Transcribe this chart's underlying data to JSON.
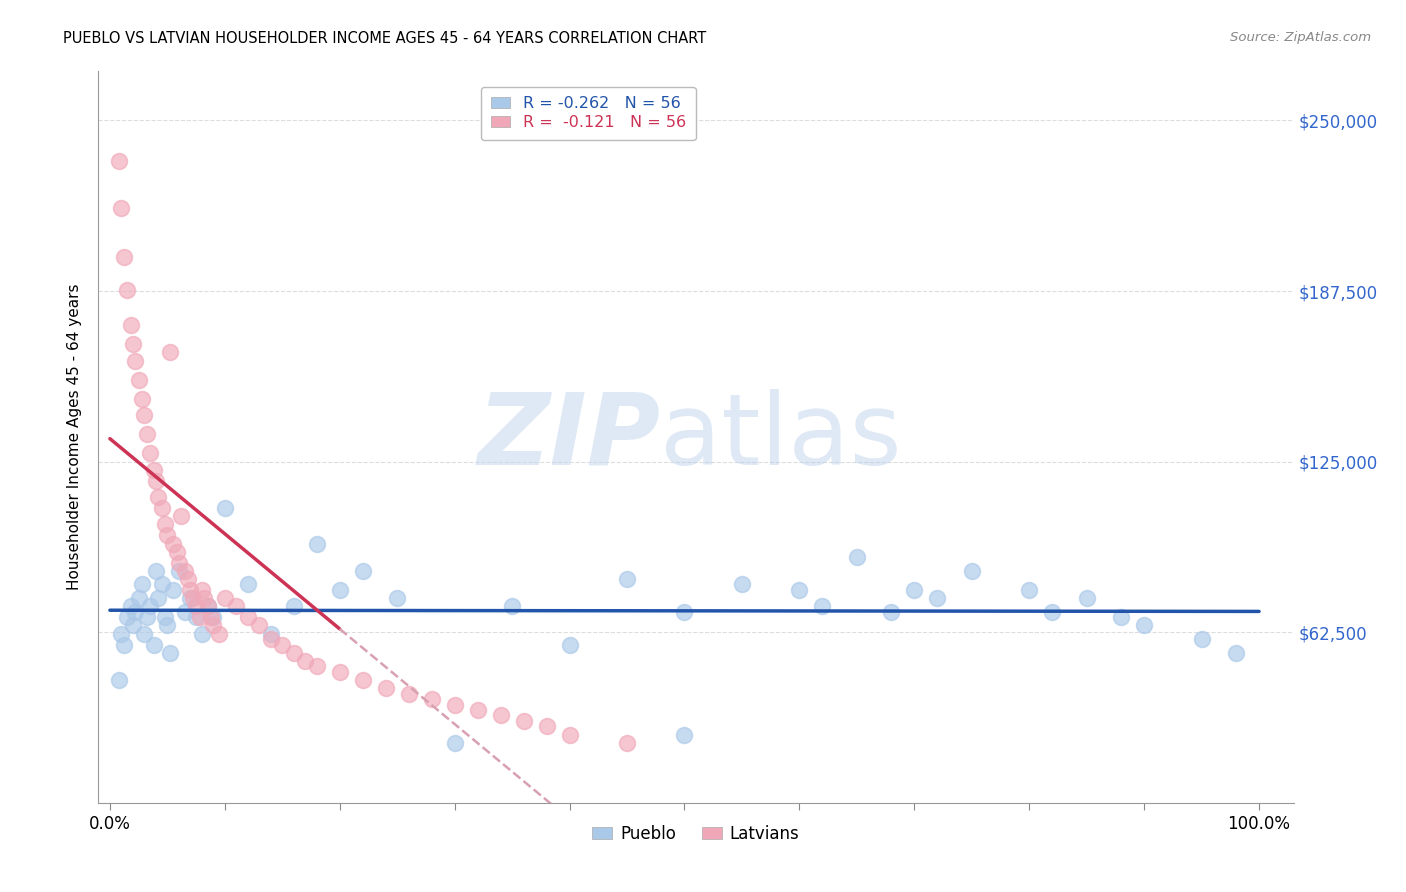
{
  "title": "PUEBLO VS LATVIAN HOUSEHOLDER INCOME AGES 45 - 64 YEARS CORRELATION CHART",
  "source": "Source: ZipAtlas.com",
  "ylabel": "Householder Income Ages 45 - 64 years",
  "ytick_labels": [
    "$62,500",
    "$125,000",
    "$187,500",
    "$250,000"
  ],
  "ytick_values": [
    62500,
    125000,
    187500,
    250000
  ],
  "ymin": 0,
  "ymax": 268000,
  "xmin": -0.01,
  "xmax": 1.03,
  "watermark_zip": "ZIP",
  "watermark_atlas": "atlas",
  "pueblo_color": "#aac8e8",
  "latvian_color": "#f0a8b8",
  "pueblo_line_color": "#2255aa",
  "latvian_line_color": "#cc3355",
  "dashed_line_color": "#d8a0b0",
  "grid_color": "#dddddd",
  "background_color": "#ffffff",
  "pueblo_x": [
    0.008,
    0.01,
    0.012,
    0.015,
    0.018,
    0.02,
    0.022,
    0.025,
    0.028,
    0.03,
    0.032,
    0.035,
    0.038,
    0.04,
    0.042,
    0.045,
    0.048,
    0.05,
    0.052,
    0.055,
    0.06,
    0.065,
    0.07,
    0.075,
    0.08,
    0.085,
    0.09,
    0.1,
    0.12,
    0.14,
    0.16,
    0.18,
    0.2,
    0.22,
    0.25,
    0.3,
    0.35,
    0.4,
    0.45,
    0.5,
    0.5,
    0.55,
    0.6,
    0.62,
    0.65,
    0.68,
    0.7,
    0.72,
    0.75,
    0.8,
    0.82,
    0.85,
    0.88,
    0.9,
    0.95,
    0.98
  ],
  "pueblo_y": [
    45000,
    62000,
    58000,
    68000,
    72000,
    65000,
    70000,
    75000,
    80000,
    62000,
    68000,
    72000,
    58000,
    85000,
    75000,
    80000,
    68000,
    65000,
    55000,
    78000,
    85000,
    70000,
    75000,
    68000,
    62000,
    72000,
    68000,
    108000,
    80000,
    62000,
    72000,
    95000,
    78000,
    85000,
    75000,
    22000,
    72000,
    58000,
    82000,
    70000,
    25000,
    80000,
    78000,
    72000,
    90000,
    70000,
    78000,
    75000,
    85000,
    78000,
    70000,
    75000,
    68000,
    65000,
    60000,
    55000
  ],
  "latvian_x": [
    0.008,
    0.01,
    0.012,
    0.015,
    0.018,
    0.02,
    0.022,
    0.025,
    0.028,
    0.03,
    0.032,
    0.035,
    0.038,
    0.04,
    0.042,
    0.045,
    0.048,
    0.05,
    0.052,
    0.055,
    0.058,
    0.06,
    0.062,
    0.065,
    0.068,
    0.07,
    0.072,
    0.075,
    0.078,
    0.08,
    0.082,
    0.085,
    0.088,
    0.09,
    0.095,
    0.1,
    0.11,
    0.12,
    0.13,
    0.14,
    0.15,
    0.16,
    0.17,
    0.18,
    0.2,
    0.22,
    0.24,
    0.26,
    0.28,
    0.3,
    0.32,
    0.34,
    0.36,
    0.38,
    0.4,
    0.45
  ],
  "latvian_y": [
    235000,
    218000,
    200000,
    188000,
    175000,
    168000,
    162000,
    155000,
    148000,
    142000,
    135000,
    128000,
    122000,
    118000,
    112000,
    108000,
    102000,
    98000,
    165000,
    95000,
    92000,
    88000,
    105000,
    85000,
    82000,
    78000,
    75000,
    72000,
    68000,
    78000,
    75000,
    72000,
    68000,
    65000,
    62000,
    75000,
    72000,
    68000,
    65000,
    60000,
    58000,
    55000,
    52000,
    50000,
    48000,
    45000,
    42000,
    40000,
    38000,
    36000,
    34000,
    32000,
    30000,
    28000,
    25000,
    22000
  ]
}
